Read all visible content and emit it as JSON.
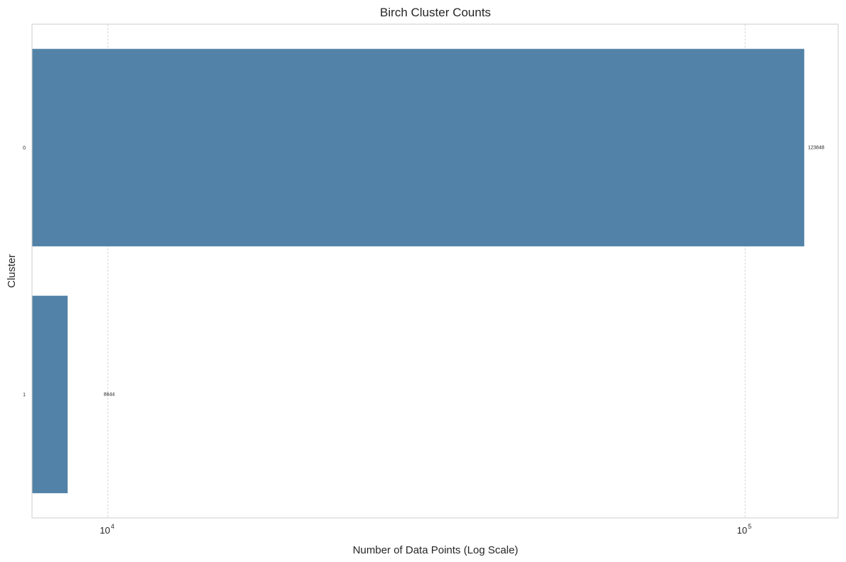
{
  "chart_data": {
    "type": "bar",
    "orientation": "horizontal",
    "title": "Birch Cluster Counts",
    "xlabel": "Number of Data Points (Log Scale)",
    "ylabel": "Cluster",
    "xscale": "log",
    "xlim": [
      7600,
      140000
    ],
    "categories": [
      "0",
      "1"
    ],
    "series": [
      {
        "values": [
          123848,
          8644
        ],
        "color": "#5282a7"
      }
    ],
    "data_labels": [
      "123848",
      "8644"
    ],
    "x_ticks": [
      {
        "base": "10",
        "exp": "4",
        "value": 10000
      },
      {
        "base": "10",
        "exp": "5",
        "value": 100000
      }
    ],
    "grid": true,
    "grid_axis": "x",
    "legend": "none"
  }
}
